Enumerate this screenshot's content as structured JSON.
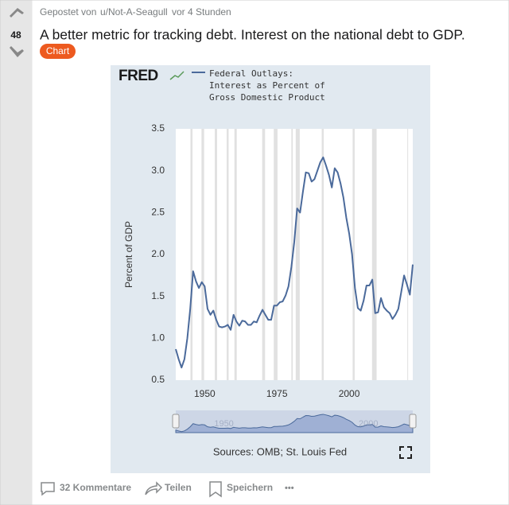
{
  "post": {
    "votes": "48",
    "posted_by": "Gepostet von",
    "user": "u/Not-A-Seagull",
    "time": "vor 4 Stunden",
    "title": "A better metric for tracking debt. Interest on the national debt to GDP.",
    "flair": "Chart",
    "actions": {
      "comments": "32 Kommentare",
      "share": "Teilen",
      "save": "Speichern",
      "more": "•••"
    }
  },
  "chart_data": {
    "type": "line",
    "logo": "FRED",
    "y_label": "Percent of GDP",
    "source": "Sources: OMB; St. Louis Fed",
    "x": [
      1940,
      1941,
      1942,
      1943,
      1944,
      1945,
      1946,
      1947,
      1948,
      1949,
      1950,
      1951,
      1952,
      1953,
      1954,
      1955,
      1956,
      1957,
      1958,
      1959,
      1960,
      1961,
      1962,
      1963,
      1964,
      1965,
      1966,
      1967,
      1968,
      1969,
      1970,
      1971,
      1972,
      1973,
      1974,
      1975,
      1976,
      1977,
      1978,
      1979,
      1980,
      1981,
      1982,
      1983,
      1984,
      1985,
      1986,
      1987,
      1988,
      1989,
      1990,
      1991,
      1992,
      1993,
      1994,
      1995,
      1996,
      1997,
      1998,
      1999,
      2000,
      2001,
      2002,
      2003,
      2004,
      2005,
      2006,
      2007,
      2008,
      2009,
      2010,
      2011,
      2012,
      2013,
      2014,
      2015,
      2016,
      2017,
      2018,
      2019,
      2020,
      2021,
      2022
    ],
    "series": [
      {
        "name": "Federal Outlays: Interest as Percent of Gross Domestic Product",
        "color": "#4b6a9b",
        "values": [
          0.87,
          0.75,
          0.65,
          0.75,
          1.0,
          1.35,
          1.8,
          1.68,
          1.6,
          1.67,
          1.62,
          1.35,
          1.28,
          1.33,
          1.22,
          1.14,
          1.13,
          1.14,
          1.16,
          1.1,
          1.28,
          1.2,
          1.15,
          1.21,
          1.2,
          1.16,
          1.16,
          1.2,
          1.19,
          1.27,
          1.34,
          1.28,
          1.22,
          1.22,
          1.39,
          1.39,
          1.43,
          1.44,
          1.51,
          1.62,
          1.85,
          2.15,
          2.55,
          2.5,
          2.75,
          2.98,
          2.97,
          2.87,
          2.9,
          3.0,
          3.1,
          3.16,
          3.06,
          2.95,
          2.8,
          3.03,
          2.98,
          2.85,
          2.68,
          2.44,
          2.25,
          2.0,
          1.6,
          1.36,
          1.33,
          1.45,
          1.63,
          1.63,
          1.7,
          1.3,
          1.31,
          1.48,
          1.37,
          1.33,
          1.3,
          1.23,
          1.28,
          1.35,
          1.55,
          1.75,
          1.64,
          1.52,
          1.88
        ]
      }
    ],
    "recessions": [
      [
        1945.1,
        1945.8
      ],
      [
        1948.9,
        1949.8
      ],
      [
        1953.5,
        1954.3
      ],
      [
        1957.6,
        1958.3
      ],
      [
        1960.3,
        1961.1
      ],
      [
        1969.9,
        1970.9
      ],
      [
        1973.9,
        1975.2
      ],
      [
        1980.0,
        1980.5
      ],
      [
        1981.5,
        1982.9
      ],
      [
        1990.5,
        1991.2
      ],
      [
        2001.2,
        2001.9
      ],
      [
        2007.9,
        2009.5
      ],
      [
        2020.1,
        2020.4
      ]
    ],
    "xlim": [
      1940,
      2022
    ],
    "xticks": [
      1950,
      1975,
      2000
    ],
    "ylim": [
      0.5,
      3.5
    ],
    "yticks": [
      0.5,
      {
        "value": 1.0,
        "label": "1.0"
      },
      1.5,
      {
        "value": 2.0,
        "label": "2.0"
      },
      2.5,
      {
        "value": 3.0,
        "label": "3.0"
      },
      3.5
    ],
    "grid": false,
    "navigator_ticks": [
      1950,
      2000
    ]
  }
}
